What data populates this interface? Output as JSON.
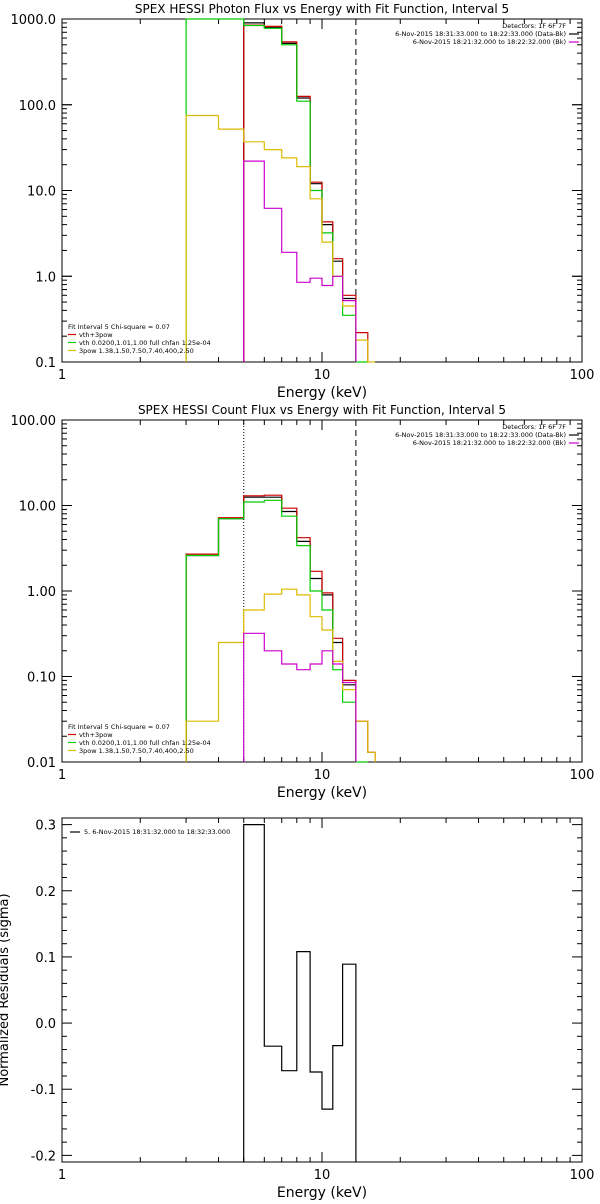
{
  "chart_data": [
    {
      "type": "line",
      "title": "SPEX HESSI Photon Flux vs Energy with Fit Function, Interval 5",
      "xlabel": "Energy (keV)",
      "ylabel": "",
      "xscale": "log",
      "yscale": "log",
      "xlim": [
        1,
        100
      ],
      "ylim": [
        0.1,
        1000
      ],
      "x_ticks": [
        "1",
        "10",
        "100"
      ],
      "y_ticks": [
        "0.1",
        "1.0",
        "10.0",
        "100.0",
        "1000.0"
      ],
      "legend_top": [
        {
          "text": "Detectors: 1F 6F 7F",
          "color": "#000000"
        },
        {
          "text": "6-Nov-2015 18:31:33.000 to 18:22:33.000 (Data-Bk)",
          "color": "#000000"
        },
        {
          "text": "6-Nov-2015 18:21:32.000 to 18:22:32.000 (Bk)",
          "color": "#cc00cc"
        }
      ],
      "legend_bottom": [
        {
          "text": "Fit Interval 5   Chi-square = 0.07",
          "color": "#000000"
        },
        {
          "text": "vth+3pow",
          "color": "#cc0000"
        },
        {
          "text": "vth 0.0200,1.01,1.00  full chfan 1.25e-04",
          "color": "#00cc00"
        },
        {
          "text": "3pow 1.38,1.50,7.50,7.40,400,2.50",
          "color": "#ddbb00"
        }
      ],
      "vlines": [
        {
          "x": 5.0,
          "style": "dotted",
          "color": "#cc00cc"
        },
        {
          "x": 13.5,
          "style": "dashed",
          "color": "#000000"
        }
      ],
      "series": [
        {
          "name": "Data-Bk",
          "color": "#000000",
          "bins": [
            [
              5,
              6,
              900
            ],
            [
              6,
              7,
              800
            ],
            [
              7,
              8,
              520
            ],
            [
              8,
              9,
              120
            ],
            [
              9,
              10,
              12
            ],
            [
              10,
              11,
              4
            ],
            [
              11,
              12,
              1.5
            ],
            [
              12,
              13.5,
              0.55
            ]
          ]
        },
        {
          "name": "vth+3pow",
          "color": "#cc0000",
          "bins": [
            [
              5,
              6,
              850
            ],
            [
              6,
              7,
              820
            ],
            [
              7,
              8,
              540
            ],
            [
              8,
              9,
              125
            ],
            [
              9,
              10,
              12.5
            ],
            [
              10,
              11,
              4.3
            ],
            [
              11,
              12,
              1.6
            ],
            [
              12,
              13.5,
              0.6
            ],
            [
              13.5,
              15,
              0.22
            ]
          ]
        },
        {
          "name": "vth",
          "color": "#00cc00",
          "bins": [
            [
              3,
              5,
              1000
            ],
            [
              5,
              6,
              840
            ],
            [
              6,
              7,
              780
            ],
            [
              7,
              8,
              500
            ],
            [
              8,
              9,
              110
            ],
            [
              9,
              10,
              10
            ],
            [
              10,
              11,
              3.2
            ],
            [
              11,
              12,
              1.0
            ],
            [
              12,
              13.5,
              0.35
            ],
            [
              13.5,
              15,
              0.1
            ]
          ]
        },
        {
          "name": "3pow",
          "color": "#ddbb00",
          "bins": [
            [
              3,
              4,
              75
            ],
            [
              4,
              5,
              52
            ],
            [
              5,
              6,
              37
            ],
            [
              6,
              7,
              30
            ],
            [
              7,
              8,
              24
            ],
            [
              8,
              9,
              19
            ],
            [
              9,
              10,
              8
            ],
            [
              10,
              11,
              2.5
            ],
            [
              11,
              12,
              1.0
            ],
            [
              12,
              13.5,
              0.45
            ],
            [
              13.5,
              15,
              0.18
            ],
            [
              15,
              16,
              0.1
            ]
          ]
        },
        {
          "name": "Bk",
          "color": "#cc00cc",
          "bins": [
            [
              5,
              6,
              22
            ],
            [
              6,
              7,
              6.2
            ],
            [
              7,
              8,
              1.9
            ],
            [
              8,
              9,
              0.85
            ],
            [
              9,
              10,
              0.95
            ],
            [
              10,
              11,
              0.78
            ],
            [
              11,
              12,
              1.0
            ],
            [
              12,
              13.5,
              0.52
            ]
          ]
        }
      ]
    },
    {
      "type": "line",
      "title": "SPEX HESSI Count Flux vs Energy with Fit Function, Interval 5",
      "xlabel": "Energy (keV)",
      "ylabel": "",
      "xscale": "log",
      "yscale": "log",
      "xlim": [
        1,
        100
      ],
      "ylim": [
        0.01,
        100
      ],
      "x_ticks": [
        "1",
        "10",
        "100"
      ],
      "y_ticks": [
        "0.01",
        "0.10",
        "1.00",
        "10.00",
        "100.00"
      ],
      "legend_top": [
        {
          "text": "Detectors: 1F 6F 7F",
          "color": "#000000"
        },
        {
          "text": "6-Nov-2015 18:31:33.000 to 18:22:33.000 (Data-Bk)",
          "color": "#000000"
        },
        {
          "text": "6-Nov-2015 18:21:32.000 to 18:22:32.000 (Bk)",
          "color": "#cc00cc"
        }
      ],
      "legend_bottom": [
        {
          "text": "Fit Interval 5   Chi-square = 0.07",
          "color": "#000000"
        },
        {
          "text": "vth+3pow",
          "color": "#cc0000"
        },
        {
          "text": "vth 0.0200,1.01,1.00  full chfan 1.25e-04",
          "color": "#00cc00"
        },
        {
          "text": "3pow 1.38,1.50,7.50,7.40,400,2.50",
          "color": "#ddbb00"
        }
      ],
      "vlines": [
        {
          "x": 5.0,
          "style": "dotted",
          "color": "#000000"
        },
        {
          "x": 13.5,
          "style": "dashed",
          "color": "#000000"
        }
      ],
      "series": [
        {
          "name": "Data-Bk",
          "color": "#000000",
          "bins": [
            [
              3,
              4,
              2.6
            ],
            [
              4,
              5,
              7.0
            ],
            [
              5,
              6,
              12.5
            ],
            [
              6,
              7,
              12.5
            ],
            [
              7,
              8,
              8.5
            ],
            [
              8,
              9,
              3.8
            ],
            [
              9,
              10,
              1.4
            ],
            [
              10,
              11,
              0.9
            ],
            [
              11,
              12,
              0.25
            ],
            [
              12,
              13.5,
              0.08
            ]
          ]
        },
        {
          "name": "vth+3pow",
          "color": "#cc0000",
          "bins": [
            [
              3,
              4,
              2.7
            ],
            [
              4,
              5,
              7.2
            ],
            [
              5,
              6,
              13
            ],
            [
              6,
              7,
              13.2
            ],
            [
              7,
              8,
              9.3
            ],
            [
              8,
              9,
              4.2
            ],
            [
              9,
              10,
              1.7
            ],
            [
              10,
              11,
              0.95
            ],
            [
              11,
              12,
              0.28
            ],
            [
              12,
              13.5,
              0.09
            ],
            [
              13.5,
              15,
              0.03
            ],
            [
              15,
              16,
              0.013
            ]
          ]
        },
        {
          "name": "vth",
          "color": "#00cc00",
          "bins": [
            [
              3,
              4,
              2.6
            ],
            [
              4,
              5,
              7.0
            ],
            [
              5,
              6,
              11
            ],
            [
              6,
              7,
              11.5
            ],
            [
              7,
              8,
              7.5
            ],
            [
              8,
              9,
              3.4
            ],
            [
              9,
              10,
              1.0
            ],
            [
              10,
              11,
              0.6
            ],
            [
              11,
              12,
              0.12
            ],
            [
              12,
              13.5,
              0.05
            ],
            [
              13.5,
              15,
              0.01
            ]
          ]
        },
        {
          "name": "3pow",
          "color": "#ddbb00",
          "bins": [
            [
              3,
              4,
              0.03
            ],
            [
              4,
              5,
              0.25
            ],
            [
              5,
              6,
              0.6
            ],
            [
              6,
              7,
              0.92
            ],
            [
              7,
              8,
              1.05
            ],
            [
              8,
              9,
              0.9
            ],
            [
              9,
              10,
              0.5
            ],
            [
              10,
              11,
              0.35
            ],
            [
              11,
              12,
              0.15
            ],
            [
              12,
              13.5,
              0.07
            ],
            [
              13.5,
              15,
              0.03
            ],
            [
              15,
              16,
              0.013
            ]
          ]
        },
        {
          "name": "Bk",
          "color": "#cc00cc",
          "bins": [
            [
              5,
              6,
              0.32
            ],
            [
              6,
              7,
              0.2
            ],
            [
              7,
              8,
              0.14
            ],
            [
              8,
              9,
              0.12
            ],
            [
              9,
              10,
              0.14
            ],
            [
              10,
              11,
              0.2
            ],
            [
              11,
              12,
              0.14
            ],
            [
              12,
              13.5,
              0.085
            ]
          ]
        }
      ]
    },
    {
      "type": "line",
      "title": "",
      "xlabel": "Energy (keV)",
      "ylabel": "Normalized Residuals (sigma)",
      "xscale": "log",
      "yscale": "linear",
      "xlim": [
        1,
        100
      ],
      "ylim": [
        -0.21,
        0.31
      ],
      "x_ticks": [
        "1",
        "10",
        "100"
      ],
      "y_ticks": [
        "-0.2",
        "-0.1",
        "0.0",
        "0.1",
        "0.2",
        "0.3"
      ],
      "legend_top": [
        {
          "text": "5. 6-Nov-2015 18:31:32.000 to 18:32:33.000",
          "color": "#000000"
        }
      ],
      "legend_bottom": [],
      "vlines": [],
      "series": [
        {
          "name": "5. 6-Nov-2015 18:31:32.000 to 18:32:33.000",
          "color": "#000000",
          "bins": [
            [
              5,
              6,
              0.3
            ],
            [
              6,
              7,
              -0.035
            ],
            [
              7,
              8,
              -0.072
            ],
            [
              8,
              9,
              0.108
            ],
            [
              9,
              10,
              -0.074
            ],
            [
              10,
              11,
              -0.13
            ],
            [
              11,
              12,
              -0.034
            ],
            [
              12,
              13.5,
              0.089
            ]
          ],
          "baseline": -0.21
        }
      ]
    }
  ]
}
